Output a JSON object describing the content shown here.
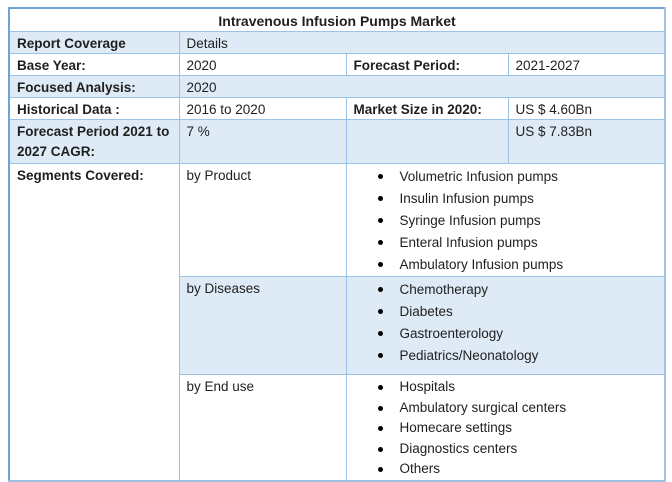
{
  "title": "Intravenous Infusion Pumps Market",
  "report_coverage": {
    "label": "Report Coverage",
    "value": "Details"
  },
  "base_year": {
    "label": "Base Year:",
    "value": "2020"
  },
  "forecast_period": {
    "label": "Forecast Period:",
    "value": "2021-2027"
  },
  "focused_analysis": {
    "label": "Focused Analysis:",
    "value": "2020"
  },
  "historical_data": {
    "label": "Historical Data :",
    "value": "2016 to 2020"
  },
  "market_size_2020": {
    "label": "Market Size in 2020:",
    "value": "US $ 4.60Bn"
  },
  "cagr": {
    "label": "Forecast Period 2021 to 2027 CAGR:",
    "value": "7 %",
    "market_size_2027": "US $ 7.83Bn"
  },
  "segments": {
    "label": "Segments Covered:",
    "groups": [
      {
        "name": "by Product",
        "items": [
          "Volumetric Infusion pumps",
          "Insulin Infusion pumps",
          "Syringe Infusion pumps",
          "Enteral Infusion pumps",
          "Ambulatory Infusion pumps"
        ]
      },
      {
        "name": "by Diseases",
        "items": [
          "Chemotherapy",
          "Diabetes",
          "Gastroenterology",
          "Pediatrics/Neonatology"
        ]
      },
      {
        "name": "by End use",
        "items": [
          "Hospitals",
          "Ambulatory surgical centers",
          "Homecare settings",
          "Diagnostics centers",
          "Others"
        ]
      }
    ]
  },
  "colors": {
    "row_fill": "#DEEAF6",
    "inner_border": "#9CC2E5",
    "outer_border_dark": "#6FA3D4",
    "outer_border_light": "#9CC2E5"
  }
}
